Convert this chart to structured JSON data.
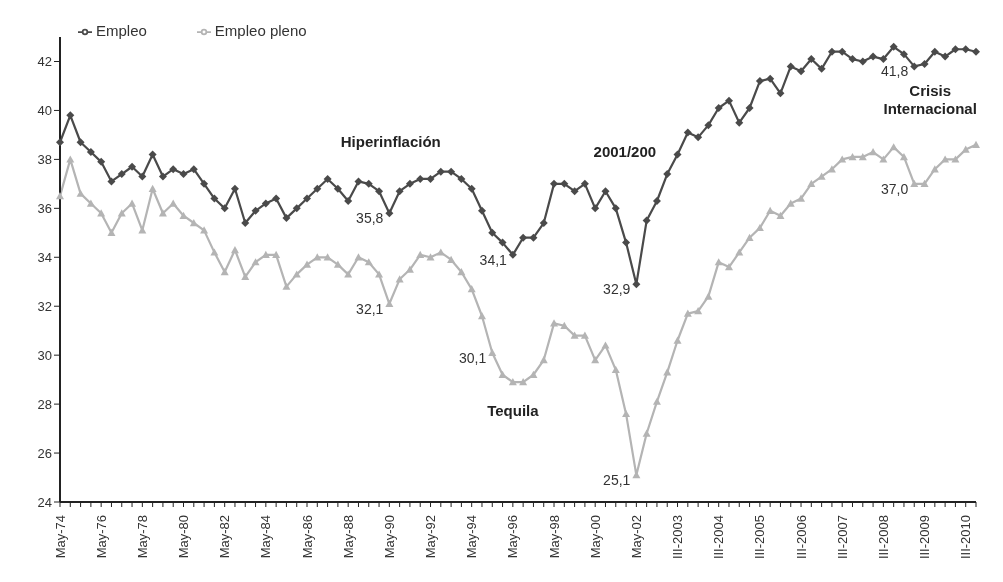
{
  "chart_data": {
    "type": "line",
    "categories": [
      "May-74",
      null,
      null,
      null,
      "May-76",
      null,
      null,
      null,
      "May-78",
      null,
      null,
      null,
      "May-80",
      null,
      null,
      null,
      "May-82",
      null,
      null,
      null,
      "May-84",
      null,
      null,
      null,
      "May-86",
      null,
      null,
      null,
      "May-88",
      null,
      null,
      null,
      "May-90",
      null,
      null,
      null,
      "May-92",
      null,
      null,
      null,
      "May-94",
      null,
      null,
      null,
      "May-96",
      null,
      null,
      null,
      "May-98",
      null,
      null,
      null,
      "May-00",
      null,
      null,
      null,
      "May-02",
      null,
      null,
      null,
      "III-2003",
      null,
      null,
      null,
      "III-2004",
      null,
      null,
      null,
      "III-2005",
      null,
      null,
      null,
      "III-2006",
      null,
      null,
      null,
      "III-2007",
      null,
      null,
      null,
      "III-2008",
      null,
      null,
      null,
      "III-2009",
      null,
      null,
      null,
      "III-2010",
      null
    ],
    "series": [
      {
        "name": "Empleo",
        "color": "#4a4a4a",
        "marker": "diamond",
        "values": [
          38.7,
          39.8,
          38.7,
          38.3,
          37.9,
          37.1,
          37.4,
          37.7,
          37.3,
          38.2,
          37.3,
          37.6,
          37.4,
          37.6,
          37.0,
          36.4,
          36.0,
          36.8,
          35.4,
          35.9,
          36.2,
          36.4,
          35.6,
          36.0,
          36.4,
          36.8,
          37.2,
          36.8,
          36.3,
          37.1,
          37.0,
          36.7,
          35.8,
          36.7,
          37.0,
          37.2,
          37.2,
          37.5,
          37.5,
          37.2,
          36.8,
          35.9,
          35.0,
          34.6,
          34.1,
          34.8,
          34.8,
          35.4,
          37.0,
          37.0,
          36.7,
          37.0,
          36.0,
          36.7,
          36.0,
          34.6,
          32.9,
          35.5,
          36.3,
          37.4,
          38.2,
          39.1,
          38.9,
          39.4,
          40.1,
          40.4,
          39.5,
          40.1,
          41.2,
          41.3,
          40.7,
          41.8,
          41.6,
          42.1,
          41.7,
          42.4,
          42.4,
          42.1,
          42.0,
          42.2,
          42.1,
          42.6,
          42.3,
          41.8,
          41.9,
          42.4,
          42.2,
          42.5,
          42.5,
          42.4
        ],
        "value_labels": [
          null,
          null,
          null,
          null,
          null,
          null,
          null,
          null,
          null,
          null,
          null,
          null,
          null,
          null,
          null,
          null,
          null,
          null,
          null,
          null,
          null,
          null,
          null,
          null,
          null,
          null,
          null,
          null,
          null,
          null,
          null,
          null,
          "35,8",
          null,
          null,
          null,
          null,
          null,
          null,
          null,
          null,
          null,
          null,
          null,
          "34,1",
          null,
          null,
          null,
          null,
          null,
          null,
          null,
          null,
          null,
          null,
          null,
          "32,9",
          null,
          null,
          null,
          null,
          null,
          null,
          null,
          null,
          null,
          null,
          null,
          null,
          null,
          null,
          null,
          null,
          null,
          null,
          null,
          null,
          null,
          null,
          null,
          null,
          null,
          null,
          "41,8",
          null,
          null,
          null,
          null,
          null,
          null
        ]
      },
      {
        "name": "Empleo pleno",
        "color": "#b4b4b4",
        "marker": "triangle",
        "values": [
          36.5,
          38.0,
          36.6,
          36.2,
          35.8,
          35.0,
          35.8,
          36.2,
          35.1,
          36.8,
          35.8,
          36.2,
          35.7,
          35.4,
          35.1,
          34.2,
          33.4,
          34.3,
          33.2,
          33.8,
          34.1,
          34.1,
          32.8,
          33.3,
          33.7,
          34.0,
          34.0,
          33.7,
          33.3,
          34.0,
          33.8,
          33.3,
          32.1,
          33.1,
          33.5,
          34.1,
          34.0,
          34.2,
          33.9,
          33.4,
          32.7,
          31.6,
          30.1,
          29.2,
          28.9,
          28.9,
          29.2,
          29.8,
          31.3,
          31.2,
          30.8,
          30.8,
          29.8,
          30.4,
          29.4,
          27.6,
          25.1,
          26.8,
          28.1,
          29.3,
          30.6,
          31.7,
          31.8,
          32.4,
          33.8,
          33.6,
          34.2,
          34.8,
          35.2,
          35.9,
          35.7,
          36.2,
          36.4,
          37.0,
          37.3,
          37.6,
          38.0,
          38.1,
          38.1,
          38.3,
          38.0,
          38.5,
          38.1,
          37.0,
          37.0,
          37.6,
          38.0,
          38.0,
          38.4,
          38.6
        ],
        "value_labels": [
          null,
          null,
          null,
          null,
          null,
          null,
          null,
          null,
          null,
          null,
          null,
          null,
          null,
          null,
          null,
          null,
          null,
          null,
          null,
          null,
          null,
          null,
          null,
          null,
          null,
          null,
          null,
          null,
          null,
          null,
          null,
          null,
          "32,1",
          null,
          null,
          null,
          null,
          null,
          null,
          null,
          null,
          null,
          "30,1",
          null,
          null,
          null,
          null,
          null,
          null,
          null,
          null,
          null,
          null,
          null,
          null,
          null,
          "25,1",
          null,
          null,
          null,
          null,
          null,
          null,
          null,
          null,
          null,
          null,
          null,
          null,
          null,
          null,
          null,
          null,
          null,
          null,
          null,
          null,
          null,
          null,
          null,
          null,
          null,
          null,
          "37,0",
          null,
          null,
          null,
          null,
          null,
          null
        ]
      }
    ],
    "ylim": [
      24,
      43
    ],
    "yticks": [
      24,
      26,
      28,
      30,
      32,
      34,
      36,
      38,
      40,
      42
    ],
    "annotations": [
      "Hiperinflación",
      "Tequila",
      "2001/200",
      "Crisis Internacional"
    ],
    "legend": "top left",
    "grid": false,
    "line_style": "solid"
  }
}
